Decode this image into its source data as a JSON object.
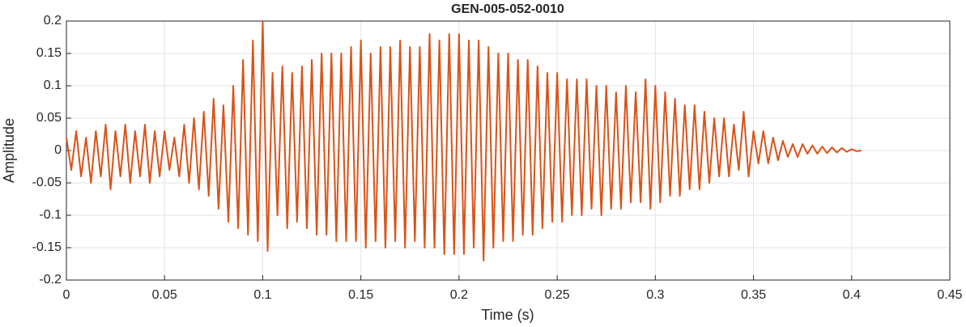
{
  "chart_data": {
    "type": "line",
    "title": "GEN-005-052-0010",
    "xlabel": "Time (s)",
    "ylabel": "Amplitude",
    "x": [
      0,
      0.0025,
      0.005,
      0.0075,
      0.01,
      0.0125,
      0.015,
      0.0175,
      0.02,
      0.0225,
      0.025,
      0.0275,
      0.03,
      0.0325,
      0.035,
      0.0375,
      0.04,
      0.0425,
      0.045,
      0.0475,
      0.05,
      0.0525,
      0.055,
      0.0575,
      0.06,
      0.0625,
      0.065,
      0.0675,
      0.07,
      0.0725,
      0.075,
      0.0775,
      0.08,
      0.0825,
      0.085,
      0.0875,
      0.09,
      0.0925,
      0.095,
      0.0975,
      0.1,
      0.1025,
      0.105,
      0.1075,
      0.11,
      0.1125,
      0.115,
      0.1175,
      0.12,
      0.1225,
      0.125,
      0.1275,
      0.13,
      0.1325,
      0.135,
      0.1375,
      0.14,
      0.1425,
      0.145,
      0.1475,
      0.15,
      0.1525,
      0.155,
      0.1575,
      0.16,
      0.1625,
      0.165,
      0.1675,
      0.17,
      0.1725,
      0.175,
      0.1775,
      0.18,
      0.1825,
      0.185,
      0.1875,
      0.19,
      0.1925,
      0.195,
      0.1975,
      0.2,
      0.2025,
      0.205,
      0.2075,
      0.21,
      0.2125,
      0.215,
      0.2175,
      0.22,
      0.2225,
      0.225,
      0.2275,
      0.23,
      0.2325,
      0.235,
      0.2375,
      0.24,
      0.2425,
      0.245,
      0.2475,
      0.25,
      0.2525,
      0.255,
      0.2575,
      0.26,
      0.2625,
      0.265,
      0.2675,
      0.27,
      0.2725,
      0.275,
      0.2775,
      0.28,
      0.2825,
      0.285,
      0.2875,
      0.29,
      0.2925,
      0.295,
      0.2975,
      0.3,
      0.3025,
      0.305,
      0.3075,
      0.31,
      0.3125,
      0.315,
      0.3175,
      0.32,
      0.3225,
      0.325,
      0.3275,
      0.33,
      0.3325,
      0.335,
      0.3375,
      0.34,
      0.3425,
      0.345,
      0.3475,
      0.35,
      0.3525,
      0.355,
      0.3575,
      0.36,
      0.3625,
      0.365,
      0.3675,
      0.37,
      0.3725,
      0.375,
      0.3775,
      0.38,
      0.3825,
      0.385,
      0.3875,
      0.39,
      0.3925,
      0.395,
      0.3975,
      0.4,
      0.4025,
      0.405
    ],
    "series": [
      {
        "color": "#d95319",
        "values": [
          0.02,
          -0.03,
          0.03,
          -0.04,
          0.02,
          -0.05,
          0.03,
          -0.04,
          0.04,
          -0.06,
          0.03,
          -0.04,
          0.04,
          -0.05,
          0.03,
          -0.04,
          0.04,
          -0.05,
          0.03,
          -0.04,
          0.03,
          -0.03,
          0.02,
          -0.04,
          0.04,
          -0.05,
          0.05,
          -0.06,
          0.06,
          -0.07,
          0.08,
          -0.09,
          0.07,
          -0.11,
          0.1,
          -0.12,
          0.14,
          -0.13,
          0.17,
          -0.14,
          0.2,
          -0.155,
          0.12,
          -0.1,
          0.13,
          -0.12,
          0.12,
          -0.11,
          0.13,
          -0.12,
          0.14,
          -0.13,
          0.15,
          -0.13,
          0.15,
          -0.14,
          0.15,
          -0.14,
          0.16,
          -0.14,
          0.17,
          -0.15,
          0.15,
          -0.14,
          0.16,
          -0.15,
          0.16,
          -0.14,
          0.17,
          -0.15,
          0.16,
          -0.14,
          0.16,
          -0.15,
          0.18,
          -0.15,
          0.17,
          -0.16,
          0.18,
          -0.16,
          0.18,
          -0.16,
          0.17,
          -0.15,
          0.17,
          -0.17,
          0.16,
          -0.15,
          0.15,
          -0.14,
          0.15,
          -0.14,
          0.14,
          -0.13,
          0.14,
          -0.13,
          0.13,
          -0.12,
          0.12,
          -0.11,
          0.12,
          -0.11,
          0.11,
          -0.1,
          0.11,
          -0.1,
          0.11,
          -0.09,
          0.1,
          -0.1,
          0.1,
          -0.09,
          0.09,
          -0.09,
          0.1,
          -0.08,
          0.09,
          -0.08,
          0.11,
          -0.09,
          0.1,
          -0.08,
          0.09,
          -0.07,
          0.08,
          -0.07,
          0.07,
          -0.06,
          0.07,
          -0.06,
          0.06,
          -0.05,
          0.05,
          -0.04,
          0.05,
          -0.04,
          0.04,
          -0.03,
          0.06,
          -0.04,
          0.03,
          -0.02,
          0.03,
          -0.02,
          0.02,
          -0.015,
          0.015,
          -0.01,
          0.01,
          -0.01,
          0.01,
          -0.005,
          0.008,
          -0.005,
          0.006,
          -0.004,
          0.005,
          -0.003,
          0.004,
          -0.002,
          0.002,
          -0.001,
          0
        ]
      }
    ],
    "xlim": [
      0,
      0.45
    ],
    "xticks": [
      0,
      0.05,
      0.1,
      0.15,
      0.2,
      0.25,
      0.3,
      0.35,
      0.4,
      0.45
    ],
    "ylim": [
      -0.2,
      0.2
    ],
    "yticks": [
      -0.2,
      -0.15,
      -0.1,
      -0.05,
      0,
      0.05,
      0.1,
      0.15,
      0.2
    ],
    "grid": true
  }
}
